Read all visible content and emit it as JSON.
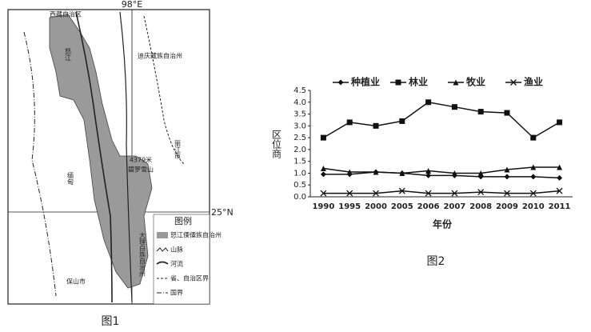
{
  "figure1": {
    "longitude": "98°E",
    "latitude": "25°N",
    "labels": [
      "西藏自治区",
      "迪庆藏族自治州",
      "丽江市",
      "4379米",
      "碧罗雪山",
      "缅甸",
      "保山市",
      "大理白族自治州",
      "怒江"
    ],
    "legend_title": "图例",
    "legend": [
      "怒江傈僳族自治州",
      "山脉",
      "河流",
      "省、自治区界",
      "国界"
    ],
    "caption": "图1"
  },
  "chart_data": {
    "type": "line",
    "caption": "图2",
    "categories": [
      "1990",
      "1995",
      "2000",
      "2005",
      "2006",
      "2007",
      "2008",
      "2009",
      "2010",
      "2011"
    ],
    "series": [
      {
        "name": "种植业",
        "color": "#111",
        "marker": "diamond",
        "values": [
          0.95,
          0.95,
          1.05,
          1.0,
          0.9,
          0.9,
          0.85,
          0.85,
          0.85,
          0.8
        ]
      },
      {
        "name": "林业",
        "color": "#111",
        "marker": "square",
        "values": [
          2.5,
          3.15,
          3.0,
          3.2,
          4.0,
          3.8,
          3.6,
          3.55,
          2.5,
          3.15
        ]
      },
      {
        "name": "牧业",
        "color": "#111",
        "marker": "triangle",
        "values": [
          1.2,
          1.05,
          1.05,
          1.0,
          1.1,
          1.0,
          1.0,
          1.15,
          1.25,
          1.25
        ]
      },
      {
        "name": "渔业",
        "color": "#111",
        "marker": "x",
        "values": [
          0.15,
          0.15,
          0.15,
          0.25,
          0.15,
          0.15,
          0.2,
          0.15,
          0.15,
          0.25
        ]
      }
    ],
    "ylim": [
      0,
      4.5
    ],
    "yticks": [
      {
        "value": 0,
        "label": "0.0"
      },
      0.5,
      {
        "value": 1,
        "label": "1.0"
      },
      1.5,
      {
        "value": 2,
        "label": "2.0"
      },
      2.5,
      {
        "value": 3,
        "label": "3.0"
      },
      3.5,
      {
        "value": 4,
        "label": "4.0"
      },
      4.5
    ],
    "y_label": "区位商",
    "x_label": "年份"
  }
}
